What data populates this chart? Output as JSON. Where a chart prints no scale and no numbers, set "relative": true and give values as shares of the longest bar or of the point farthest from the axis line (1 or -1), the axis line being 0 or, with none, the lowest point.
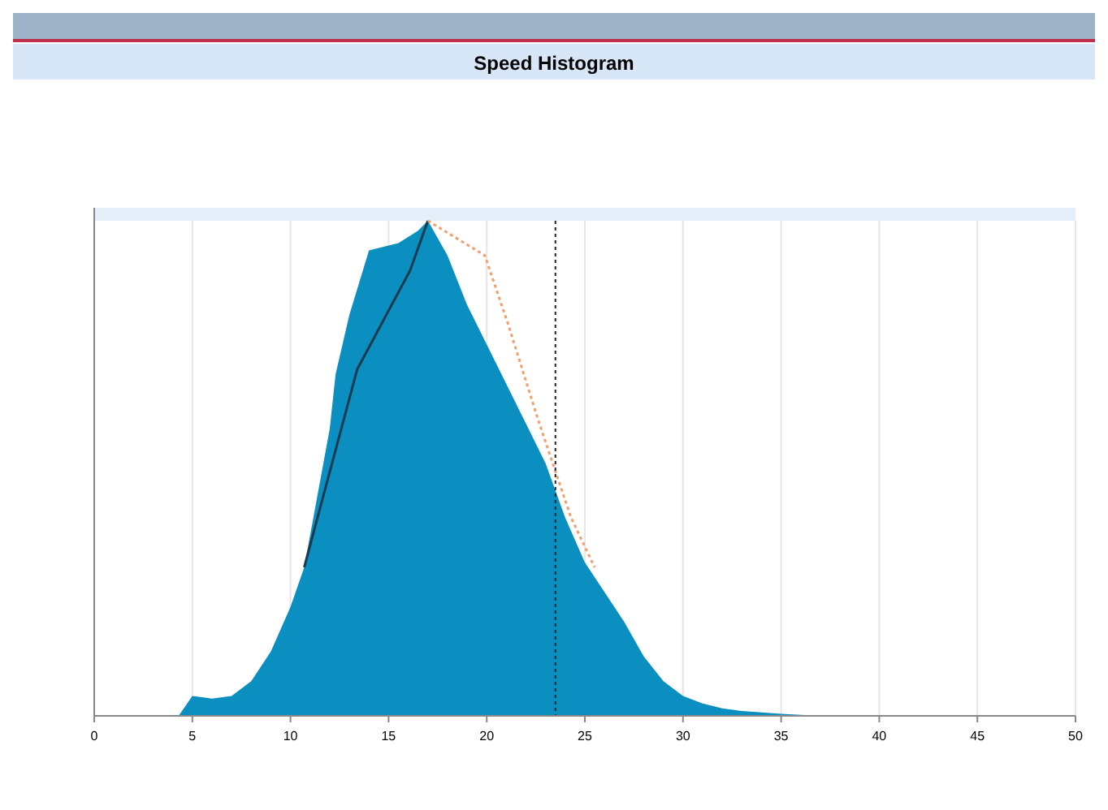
{
  "chart_data": {
    "type": "area",
    "title": "Speed Histogram",
    "relative": true,
    "xlim": [
      0,
      50
    ],
    "xticks": [
      0,
      5,
      10,
      15,
      20,
      25,
      30,
      35,
      40,
      45,
      50
    ],
    "grid": "x",
    "series": [
      {
        "color": "#0a8fc0",
        "x": [
          0,
          4.3,
          5,
          6,
          7,
          8,
          9,
          10,
          10.7,
          12,
          12.3,
          13,
          14,
          15.5,
          16.5,
          17,
          18,
          19,
          20,
          21,
          22,
          23,
          24,
          25,
          26,
          27,
          28,
          29,
          30,
          31,
          32,
          33,
          35,
          37,
          50
        ],
        "values": [
          0,
          0,
          0.04,
          0.035,
          0.04,
          0.07,
          0.13,
          0.22,
          0.3,
          0.58,
          0.69,
          0.81,
          0.94,
          0.955,
          0.98,
          1,
          0.93,
          0.83,
          0.75,
          0.67,
          0.59,
          0.51,
          0.4,
          0.31,
          0.25,
          0.19,
          0.12,
          0.07,
          0.04,
          0.025,
          0.015,
          0.01,
          0.004,
          0,
          0
        ]
      },
      {
        "type": "line",
        "color": "#1a3a50",
        "x": [
          10.7,
          13.4,
          16.1,
          17
        ],
        "values": [
          0.3,
          0.7,
          0.9,
          1
        ]
      },
      {
        "type": "line",
        "color": "#f0a070",
        "line_style": "dotted",
        "x": [
          17,
          19.9,
          21.1,
          22.6,
          24.3,
          25.5
        ],
        "values": [
          1,
          0.93,
          0.79,
          0.6,
          0.4,
          0.3
        ]
      }
    ],
    "ref_lines": [
      {
        "axis": "x",
        "value": 23.5,
        "color": "#222222",
        "line_style": "dotted"
      }
    ]
  }
}
